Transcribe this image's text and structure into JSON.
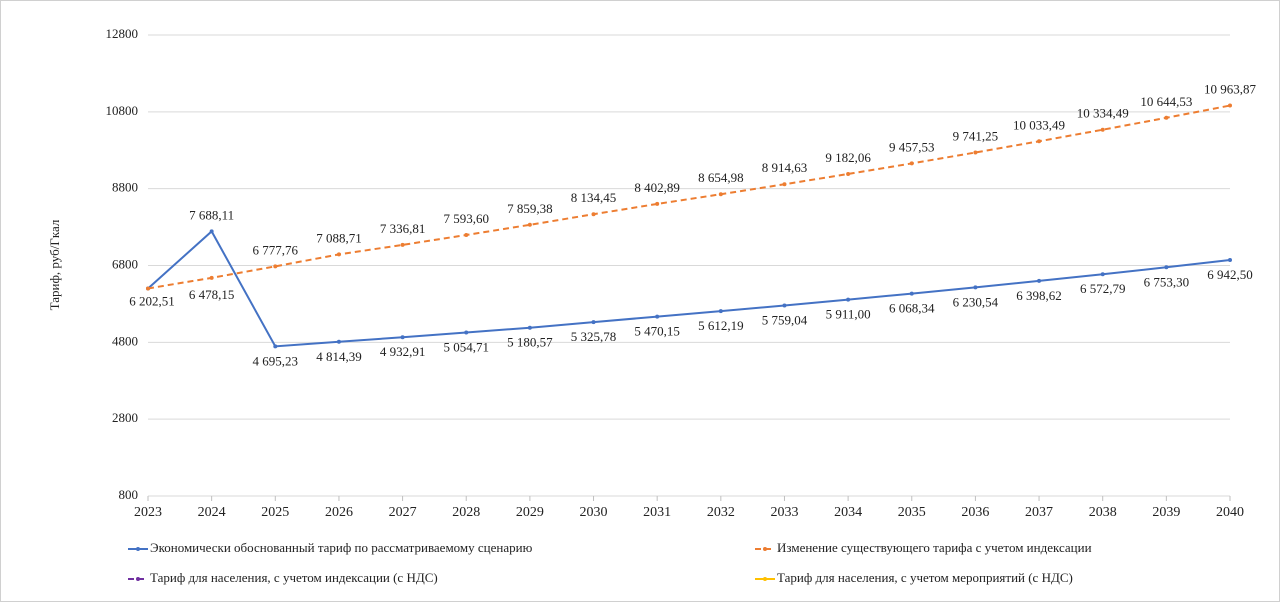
{
  "chart_data": {
    "type": "line",
    "y_label": "Тариф, руб/Гкал",
    "x": [
      2023,
      2024,
      2025,
      2026,
      2027,
      2028,
      2029,
      2030,
      2031,
      2032,
      2033,
      2034,
      2035,
      2036,
      2037,
      2038,
      2039,
      2040
    ],
    "xlim": [
      2023,
      2040
    ],
    "xticks": [
      2023,
      2024,
      2025,
      2026,
      2027,
      2028,
      2029,
      2030,
      2031,
      2032,
      2033,
      2034,
      2035,
      2036,
      2037,
      2038,
      2039,
      2040
    ],
    "ylim": [
      800,
      12800
    ],
    "yticks": [
      800,
      2800,
      4800,
      6800,
      8800,
      10800,
      12800
    ],
    "grid": true,
    "series": [
      {
        "name": "Экономически обоснованный тариф по рассматриваемому сценарию",
        "color": "#4472c4",
        "dash": "solid",
        "values": [
          6202.51,
          7688.11,
          4695.23,
          4814.39,
          4932.91,
          5054.71,
          5180.57,
          5325.78,
          5470.15,
          5612.19,
          5759.04,
          5911.0,
          6068.34,
          6230.54,
          6398.62,
          6572.79,
          6753.3,
          6942.5
        ],
        "value_labels": [
          "6 202,51",
          "7 688,11",
          "4 695,23",
          "4 814,39",
          "4 932,91",
          "5 054,71",
          "5 180,57",
          "5 325,78",
          "5 470,15",
          "5 612,19",
          "5 759,04",
          "5 911,00",
          "6 068,34",
          "6 230,54",
          "6 398,62",
          "6 572,79",
          "6 753,30",
          "6 942,50"
        ]
      },
      {
        "name": "Изменение существующего тарифа с учетом индексации",
        "color": "#ed7d31",
        "dash": "dashed",
        "values": [
          6202.51,
          6478.15,
          6777.76,
          7088.71,
          7336.81,
          7593.6,
          7859.38,
          8134.45,
          8402.89,
          8654.98,
          8914.63,
          9182.06,
          9457.53,
          9741.25,
          10033.49,
          10334.49,
          10644.53,
          10963.87
        ],
        "value_labels": [
          null,
          "6 478,15",
          "6 777,76",
          "7 088,71",
          "7 336,81",
          "7 593,60",
          "7 859,38",
          "8 134,45",
          "8 402,89",
          "8 654,98",
          "8 914,63",
          "9 182,06",
          "9 457,53",
          "9 741,25",
          "10 033,49",
          "10 334,49",
          "10 644,53",
          "10 963,87"
        ]
      },
      {
        "name": "Тариф для населения, с учетом индексации (с НДС)",
        "color": "#7030a0",
        "dash": "dashed",
        "values": [
          null,
          null,
          null,
          null,
          null,
          null,
          null,
          null,
          null,
          null,
          null,
          null,
          null,
          null,
          null,
          null,
          null,
          null
        ]
      },
      {
        "name": "Тариф для населения, с учетом мероприятий (с НДС)",
        "color": "#ffc000",
        "dash": "solid",
        "values": [
          null,
          null,
          null,
          null,
          null,
          null,
          null,
          null,
          null,
          null,
          null,
          null,
          null,
          null,
          null,
          null,
          null,
          null
        ]
      }
    ]
  }
}
